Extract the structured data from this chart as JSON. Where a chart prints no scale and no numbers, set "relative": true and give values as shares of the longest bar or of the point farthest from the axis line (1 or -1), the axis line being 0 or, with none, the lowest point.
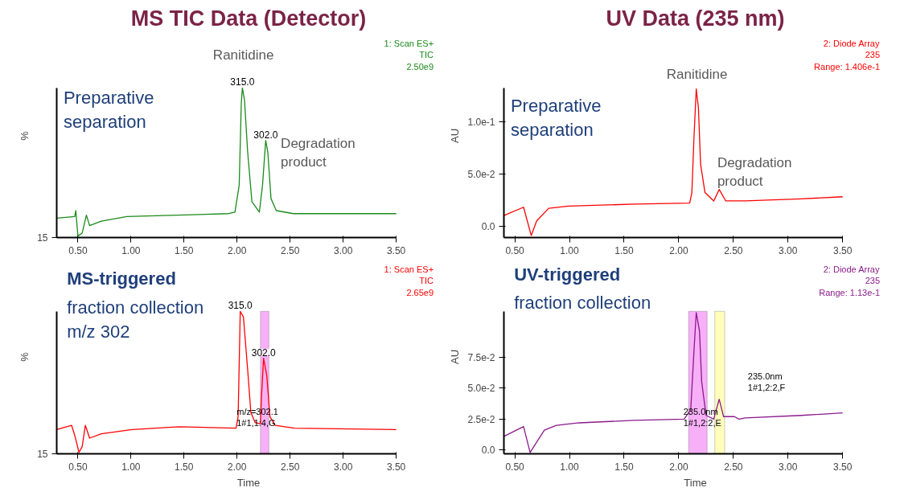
{
  "chart_data": [
    {
      "type": "line",
      "title": "MS TIC Data (Detector)",
      "ylabel": "%",
      "relative": true,
      "xlim": [
        0.3,
        3.5
      ],
      "xticks": [
        {
          "value": 0.5,
          "label": "0.50"
        },
        {
          "value": 1.0,
          "label": "1.00"
        },
        {
          "value": 1.5,
          "label": "1.50"
        },
        {
          "value": 2.0,
          "label": "2.00"
        },
        {
          "value": 2.5,
          "label": "2.50"
        },
        {
          "value": 3.0,
          "label": "3.00"
        },
        {
          "value": 3.5,
          "label": "3.50"
        }
      ],
      "x": [
        0.3,
        0.47,
        0.48,
        0.5,
        0.54,
        0.58,
        0.61,
        0.72,
        0.96,
        1.44,
        1.92,
        1.98,
        2.02,
        2.04,
        2.05,
        2.07,
        2.1,
        2.14,
        2.21,
        2.24,
        2.27,
        2.29,
        2.32,
        2.37,
        2.53,
        3.5
      ],
      "series": [
        {
          "color": "#1a8a1a",
          "values": [
            0.13,
            0.14,
            0.18,
            0.01,
            0.03,
            0.15,
            0.08,
            0.11,
            0.14,
            0.15,
            0.16,
            0.17,
            0.35,
            0.9,
            1.0,
            0.92,
            0.57,
            0.24,
            0.17,
            0.35,
            0.65,
            0.57,
            0.26,
            0.18,
            0.16,
            0.16
          ]
        }
      ],
      "annotations": [
        "1: Scan ES+\nTIC\n2.50e9",
        "Preparative\nseparation",
        "Ranitidine",
        "Degradation\nproduct",
        "15",
        {
          "text": "315.0",
          "x": 2.05,
          "y": 1.0
        },
        {
          "text": "302.0",
          "x": 2.27,
          "y": 0.65
        }
      ]
    },
    {
      "type": "line",
      "title": "UV Data (235 nm)",
      "ylabel": "AU",
      "xlim": [
        0.4,
        3.5
      ],
      "ylim": [
        -0.011,
        0.132
      ],
      "xticks": [
        {
          "value": 0.5,
          "label": "0.50"
        },
        {
          "value": 1.0,
          "label": "1.00"
        },
        {
          "value": 1.5,
          "label": "1.50"
        },
        {
          "value": 2.0,
          "label": "2.00"
        },
        {
          "value": 2.5,
          "label": "2.50"
        },
        {
          "value": 3.0,
          "label": "3.00"
        },
        {
          "value": 3.5,
          "label": "3.50"
        }
      ],
      "yticks": [
        {
          "value": 0,
          "label": "0.0"
        },
        {
          "value": 0.05,
          "label": "5.0e-2"
        },
        {
          "value": 0.1,
          "label": "1.0e-1"
        }
      ],
      "x": [
        0.4,
        0.58,
        0.65,
        0.7,
        0.81,
        0.99,
        1.6,
        2.1,
        2.12,
        2.14,
        2.16,
        2.18,
        2.2,
        2.24,
        2.32,
        2.37,
        2.43,
        2.61,
        3.12,
        3.5
      ],
      "series": [
        {
          "color": "#ff0000",
          "values": [
            0.01,
            0.018,
            -0.009,
            0.005,
            0.017,
            0.019,
            0.021,
            0.022,
            0.032,
            0.086,
            0.131,
            0.113,
            0.059,
            0.032,
            0.024,
            0.035,
            0.024,
            0.024,
            0.026,
            0.028
          ]
        }
      ],
      "annotations": [
        "2: Diode Array\n235\nRange: 1.406e-1",
        "Preparative\nseparation",
        "Ranitidine",
        "Degradation\nproduct"
      ]
    },
    {
      "type": "line",
      "xlabel": "Time",
      "ylabel": "%",
      "relative": true,
      "xlim": [
        0.3,
        3.5
      ],
      "xticks": [
        {
          "value": 0.5,
          "label": "0.50"
        },
        {
          "value": 1.0,
          "label": "1.00"
        },
        {
          "value": 1.5,
          "label": "1.50"
        },
        {
          "value": 2.0,
          "label": "2.00"
        },
        {
          "value": 2.5,
          "label": "2.50"
        },
        {
          "value": 3.0,
          "label": "3.00"
        },
        {
          "value": 3.5,
          "label": "3.50"
        }
      ],
      "x": [
        0.3,
        0.44,
        0.47,
        0.51,
        0.54,
        0.57,
        0.61,
        0.72,
        1.01,
        1.45,
        1.99,
        2.01,
        2.03,
        2.06,
        2.1,
        2.13,
        2.17,
        2.22,
        2.23,
        2.25,
        2.28,
        2.31,
        2.36,
        2.54,
        3.5
      ],
      "series": [
        {
          "color": "#ff0000",
          "values": [
            0.17,
            0.2,
            0.13,
            0.01,
            0.05,
            0.2,
            0.11,
            0.14,
            0.17,
            0.19,
            0.18,
            0.26,
            1.0,
            0.96,
            0.59,
            0.29,
            0.22,
            0.21,
            0.4,
            0.67,
            0.55,
            0.26,
            0.2,
            0.18,
            0.17
          ]
        }
      ],
      "bands": [
        {
          "axis": "x",
          "from": 2.22,
          "to": 2.3,
          "color": "#f7b0f7"
        }
      ],
      "annotations": [
        "1: Scan ES+\nTIC\n2.65e9",
        "MS-triggered",
        "fraction collection\nm/z 302",
        "m/z=302.1\n1#1,1:4,G",
        "15",
        {
          "text": "315.0",
          "x": 2.03,
          "y": 1.0
        },
        {
          "text": "302.0",
          "x": 2.25,
          "y": 0.67
        }
      ]
    },
    {
      "type": "line",
      "xlabel": "Time",
      "ylabel": "AU",
      "xlim": [
        0.4,
        3.5
      ],
      "ylim": [
        -0.003,
        0.112
      ],
      "xticks": [
        {
          "value": 0.5,
          "label": "0.50"
        },
        {
          "value": 1.0,
          "label": "1.00"
        },
        {
          "value": 1.5,
          "label": "1.50"
        },
        {
          "value": 2.0,
          "label": "2.00"
        },
        {
          "value": 2.5,
          "label": "2.50"
        },
        {
          "value": 3.0,
          "label": "3.00"
        },
        {
          "value": 3.5,
          "label": "3.50"
        }
      ],
      "yticks": [
        {
          "value": 0,
          "label": "0.0"
        },
        {
          "value": 0.025,
          "label": "2.5e-2"
        },
        {
          "value": 0.05,
          "label": "5.0e-2"
        },
        {
          "value": 0.075,
          "label": "7.5e-2"
        }
      ],
      "x": [
        0.4,
        0.58,
        0.64,
        0.69,
        0.77,
        0.88,
        1.09,
        1.59,
        2.05,
        2.11,
        2.14,
        2.16,
        2.19,
        2.21,
        2.25,
        2.32,
        2.37,
        2.41,
        2.51,
        2.55,
        2.61,
        3.12,
        3.5
      ],
      "series": [
        {
          "color": "#8b1a8b",
          "values": [
            0.011,
            0.019,
            -0.002,
            0.005,
            0.016,
            0.02,
            0.022,
            0.024,
            0.025,
            0.033,
            0.081,
            0.111,
            0.096,
            0.055,
            0.028,
            0.025,
            0.041,
            0.027,
            0.027,
            0.025,
            0.026,
            0.028,
            0.03
          ]
        }
      ],
      "bands": [
        {
          "axis": "x",
          "from": 2.09,
          "to": 2.26,
          "color": "#f7b0f7"
        },
        {
          "axis": "x",
          "from": 2.33,
          "to": 2.42,
          "color": "#ffffbb"
        }
      ],
      "annotations": [
        "2: Diode Array\n235\nRange: 1.13e-1",
        "UV-triggered",
        "fraction collection",
        "235.0nm\n1#1,2:2,E",
        "235.0nm\n1#1,2:2,F"
      ]
    }
  ]
}
